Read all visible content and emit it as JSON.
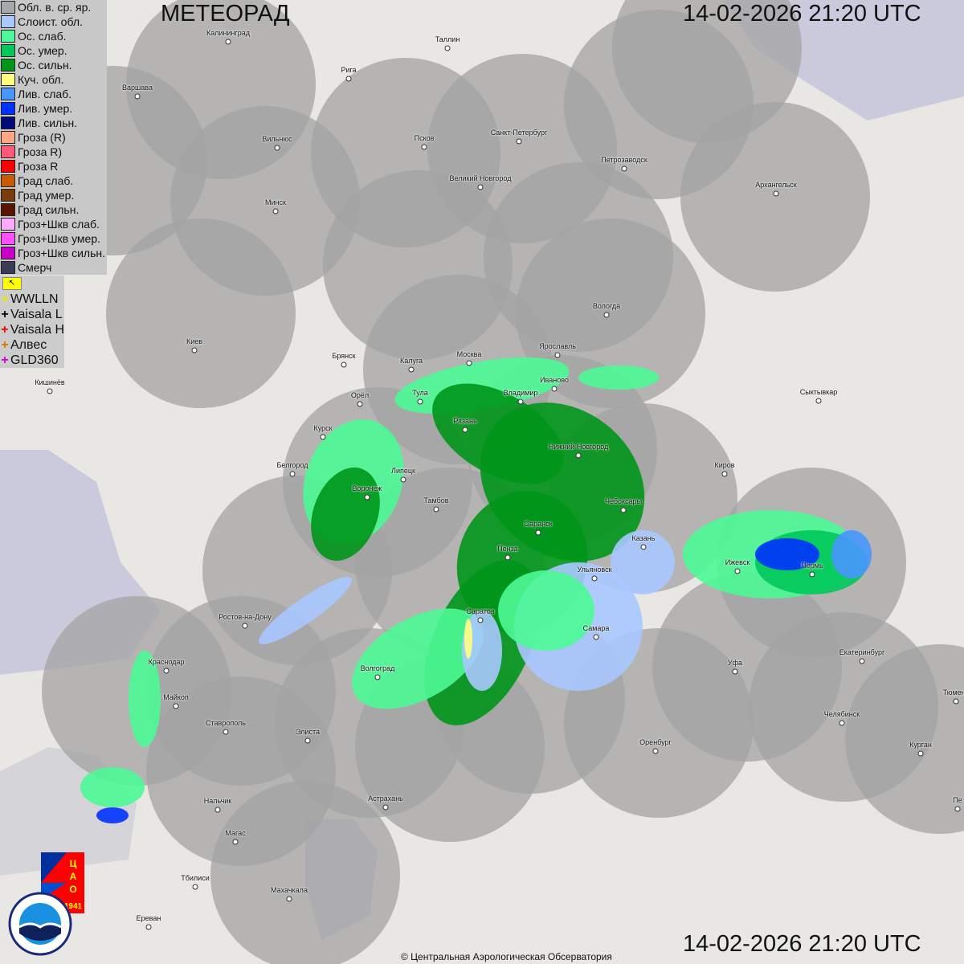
{
  "header": {
    "title": "МЕТЕОРАД",
    "datetime_top": "14-02-2026  21:20 UTC",
    "datetime_bottom": "14-02-2026  21:20 UTC"
  },
  "legend": [
    {
      "label": "Обл. в. ср. яр.",
      "color": "#a5a9ab"
    },
    {
      "label": "Слоист. обл.",
      "color": "#a8c8ff"
    },
    {
      "label": "Ос. слаб.",
      "color": "#4cfa96"
    },
    {
      "label": "Ос. умер.",
      "color": "#00c85a"
    },
    {
      "label": "Ос. сильн.",
      "color": "#009619"
    },
    {
      "label": "Куч. обл.",
      "color": "#ffff80"
    },
    {
      "label": "Лив. слаб.",
      "color": "#4896ff"
    },
    {
      "label": "Лив. умер.",
      "color": "#0032ff"
    },
    {
      "label": "Лив. сильн.",
      "color": "#000a78"
    },
    {
      "label": "Гроза (R)",
      "color": "#ffa882"
    },
    {
      "label": "Гроза R)",
      "color": "#ff5a78"
    },
    {
      "label": "Гроза R",
      "color": "#ff0000"
    },
    {
      "label": "Град слаб.",
      "color": "#c85a00"
    },
    {
      "label": "Град умер.",
      "color": "#7a3c0a"
    },
    {
      "label": "Град сильн.",
      "color": "#5a1400"
    },
    {
      "label": "Гроз+Шкв слаб.",
      "color": "#ffaaff"
    },
    {
      "label": "Гроз+Шкв умер.",
      "color": "#ff50ff"
    },
    {
      "label": "Гроз+Шкв сильн.",
      "color": "#c800c8"
    },
    {
      "label": "Смерч",
      "color": "#3c3c5a"
    }
  ],
  "lightning_toggle_icon": "arrow-corner-icon",
  "lightning": [
    {
      "label": "WWLLN",
      "color": "#e8e800"
    },
    {
      "label": "Vaisala L",
      "color": "#000000"
    },
    {
      "label": "Vaisala H",
      "color": "#ff0000"
    },
    {
      "label": "Алвес",
      "color": "#e07000"
    },
    {
      "label": "GLD360",
      "color": "#d000d0"
    }
  ],
  "cities": [
    "Калининград",
    "Таллин",
    "Рига",
    "Варшава",
    "Санкт-Петербург",
    "Вильнюс",
    "Псков",
    "Петрозаводск",
    "Великий Новгород",
    "Архангельск",
    "Минск",
    "Вологда",
    "Киев",
    "Ярославль",
    "Москва",
    "Брянск",
    "Калуга",
    "Иваново",
    "Кишинёв",
    "Орёл",
    "Тула",
    "Владимир",
    "Сыктывкар",
    "Рязань",
    "Курск",
    "Нижний Новгород",
    "Белгород",
    "Киров",
    "Липецк",
    "Воронеж",
    "Тамбов",
    "Чебоксары",
    "Саранск",
    "Казань",
    "Пенза",
    "Ижевск",
    "Пермь",
    "Ульяновск",
    "Саратов",
    "Ростов-на-Дону",
    "Самара",
    "Краснодар",
    "Екатеринбург",
    "Уфа",
    "Волгоград",
    "Майкоп",
    "Тюмень",
    "Челябинск",
    "Ставрополь",
    "Элиста",
    "Оренбург",
    "Курган",
    "Нальчик",
    "Астрахань",
    "Пе",
    "Магас",
    "Тбилиси",
    "Махачкала",
    "Ереван"
  ],
  "logos": {
    "cao": "ЦАО 1941",
    "roshydromet": "РОСГИДРОМЕТ ROSHYDROMET"
  },
  "copyright": "© Центральная Аэрологическая Обсерватория"
}
